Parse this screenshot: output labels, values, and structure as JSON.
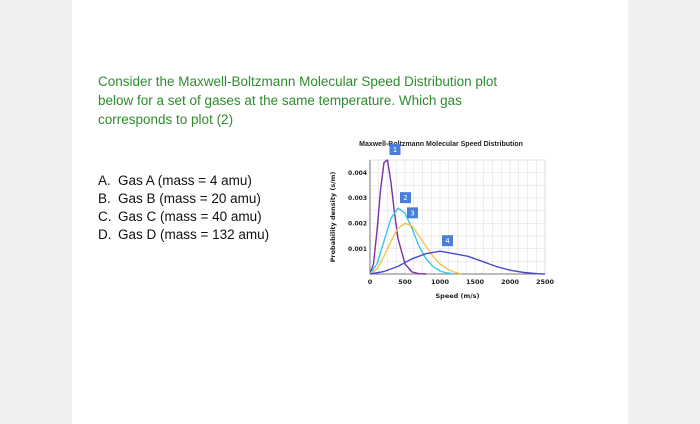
{
  "question": {
    "line1": "Consider the Maxwell-Boltzmann Molecular Speed Distribution plot",
    "line2": "below for a set of gases at the same temperature. Which gas",
    "line3": "corresponds to plot (2)"
  },
  "options": [
    {
      "letter": "A.",
      "text": "Gas A (mass = 4 amu)"
    },
    {
      "letter": "B.",
      "text": "Gas B (mass = 20 amu)"
    },
    {
      "letter": "C.",
      "text": "Gas C (mass = 40 amu)"
    },
    {
      "letter": "D.",
      "text": "Gas D (mass = 132 amu)"
    }
  ],
  "chart_data": {
    "type": "line",
    "title": "Maxwell-Boltzmann Molecular Speed Distribution",
    "xlabel": "Speed (m/s)",
    "ylabel": "Probability density (s/m)",
    "xlim": [
      0,
      2500
    ],
    "ylim": [
      0,
      0.0045
    ],
    "xticks": [
      "0",
      "500",
      "1000",
      "1500",
      "2000",
      "2500"
    ],
    "yticks": [
      "0.001",
      "0.002",
      "0.003",
      "0.004"
    ],
    "grid": true,
    "series": [
      {
        "name": "1",
        "color": "#7b2fa8",
        "x": [
          0,
          50,
          100,
          150,
          200,
          250,
          300,
          350,
          400,
          500,
          600,
          700,
          800
        ],
        "y": [
          0,
          0.0004,
          0.0017,
          0.0033,
          0.0044,
          0.0045,
          0.0036,
          0.0024,
          0.0014,
          0.0004,
          8e-05,
          1e-05,
          0
        ]
      },
      {
        "name": "2",
        "color": "#36c6f0",
        "x": [
          0,
          100,
          200,
          300,
          400,
          500,
          600,
          700,
          800,
          900,
          1000,
          1100,
          1200
        ],
        "y": [
          0,
          0.0004,
          0.0013,
          0.0022,
          0.0026,
          0.0024,
          0.0018,
          0.0011,
          0.0006,
          0.0003,
          0.00012,
          4e-05,
          0
        ]
      },
      {
        "name": "3",
        "color": "#f5c24a",
        "x": [
          0,
          100,
          200,
          300,
          400,
          500,
          600,
          700,
          800,
          900,
          1000,
          1100,
          1200,
          1300
        ],
        "y": [
          0,
          0.0002,
          0.0007,
          0.0013,
          0.0018,
          0.002,
          0.0019,
          0.0015,
          0.0011,
          0.0007,
          0.0004,
          0.0002,
          8e-05,
          0
        ]
      },
      {
        "name": "4",
        "color": "#4a4ad0",
        "x": [
          0,
          200,
          400,
          600,
          800,
          1000,
          1200,
          1400,
          1600,
          1800,
          2000,
          2200,
          2400,
          2500
        ],
        "y": [
          0,
          0.0001,
          0.0003,
          0.0006,
          0.0008,
          0.0009,
          0.0008,
          0.0007,
          0.0005,
          0.0003,
          0.00015,
          6e-05,
          1e-05,
          0
        ]
      }
    ]
  }
}
